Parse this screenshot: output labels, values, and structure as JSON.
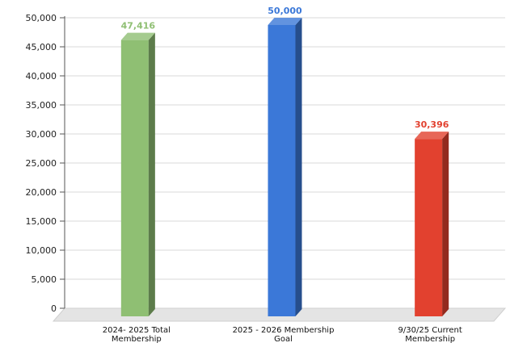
{
  "chart_data": {
    "type": "bar",
    "categories": [
      [
        "2024- 2025 Total",
        "Membership"
      ],
      [
        "2025 - 2026 Membership",
        "Goal"
      ],
      [
        "9/30/25 Current",
        "Membership"
      ]
    ],
    "values": [
      47416,
      50000,
      30396
    ],
    "data_labels": [
      "47,416",
      "50,000",
      "30,396"
    ],
    "colors": [
      "#8fbf73",
      "#3b78d8",
      "#e2412f"
    ],
    "label_colors": [
      "#8fbf73",
      "#3b78d8",
      "#e2412f"
    ],
    "ylim": [
      0,
      50000
    ],
    "yticks": [
      0,
      5000,
      10000,
      15000,
      20000,
      25000,
      30000,
      35000,
      40000,
      45000,
      50000
    ],
    "ytick_labels": [
      "0",
      "5,000",
      "10,000",
      "15,000",
      "20,000",
      "25,000",
      "30,000",
      "35,000",
      "40,000",
      "45,000",
      "50,000"
    ],
    "grid": true,
    "title": "",
    "xlabel": "",
    "ylabel": "",
    "style": "3d"
  }
}
